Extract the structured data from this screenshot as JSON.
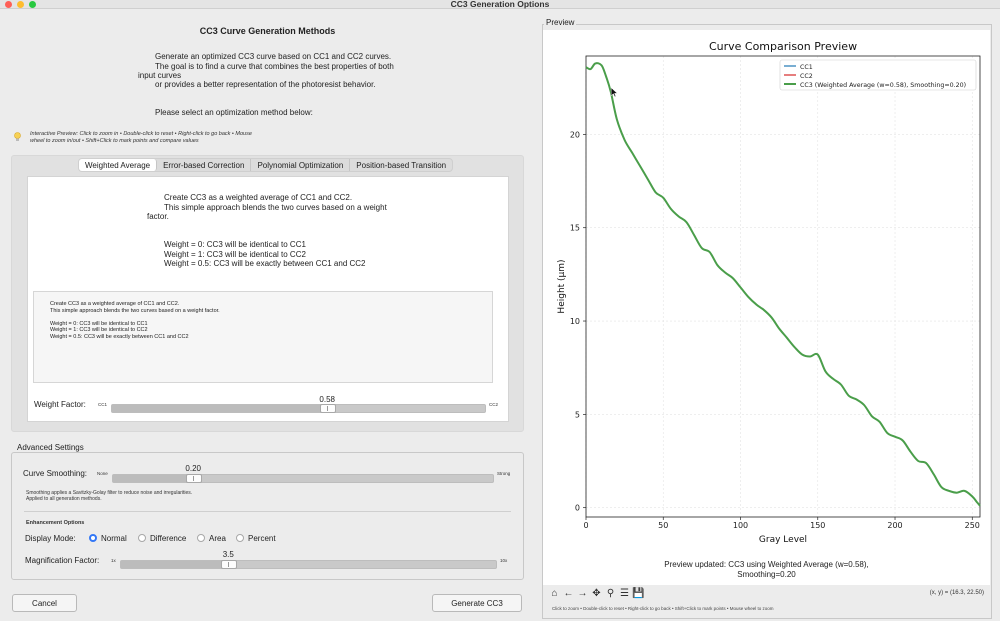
{
  "window": {
    "title": "CC3 Generation Options"
  },
  "heading": "CC3 Curve Generation Methods",
  "intro": {
    "lines": [
      "Generate an optimized CC3 curve based on CC1 and CC2 curves.",
      "The goal is to find a curve that combines the best properties of both",
      "input curves",
      "or provides a better representation of the photoresist behavior."
    ],
    "select_prompt": "Please select an optimization method below:"
  },
  "hint": {
    "line1": "Interactive Preview: Click to zoom in • Double-click to reset • Right-click to go back • Mouse",
    "line2": "wheel to zoom in/out • Shift+Click to mark points and compare values"
  },
  "tabs": [
    "Weighted Average",
    "Error-based Correction",
    "Polynomial Optimization",
    "Position-based Transition"
  ],
  "active_tab": 0,
  "method": {
    "desc": [
      "Create CC3 as a weighted average of CC1 and CC2.",
      "This simple approach blends the two curves based on a weight",
      "factor."
    ],
    "rules": [
      "Weight = 0: CC3 will be identical to CC1",
      "Weight = 1: CC3 will be identical to CC2",
      "Weight = 0.5: CC3 will be exactly between CC1 and CC2"
    ],
    "textbox": [
      "Create CC3 as a weighted average of CC1 and CC2.",
      "This simple approach blends the two curves based on a weight factor.",
      "",
      "Weight = 0: CC3 will be identical to CC1",
      "Weight = 1: CC3 will be identical to CC2",
      "Weight = 0.5: CC3 will be exactly between CC1 and CC2"
    ],
    "weight": {
      "label": "Weight Factor:",
      "min_label": "CC1",
      "max_label": "CC2",
      "value": 0.58,
      "value_text": "0.58"
    }
  },
  "advanced": {
    "title": "Advanced Settings",
    "smoothing": {
      "label": "Curve Smoothing:",
      "min_label": "None",
      "max_label": "Strong",
      "value": 0.2,
      "value_text": "0.20"
    },
    "smoothing_note": [
      "Smoothing applies a Savitzky-Golay filter to reduce noise and irregularities.",
      "Applied to all generation methods."
    ],
    "enhancement_title": "Enhancement Options",
    "display_mode": {
      "label": "Display Mode:",
      "options": [
        "Normal",
        "Difference",
        "Area",
        "Percent"
      ],
      "selected": 0
    },
    "magnification": {
      "label": "Magnification Factor:",
      "min_label": "1x",
      "max_label": "10x",
      "value": 3.5,
      "min": 1,
      "max": 10,
      "value_text": "3.5"
    }
  },
  "buttons": {
    "cancel": "Cancel",
    "generate": "Generate CC3"
  },
  "preview": {
    "group_title": "Preview",
    "status_line1": "Preview updated: CC3 using Weighted Average (w=0.58),",
    "status_line2": "Smoothing=0.20",
    "coords": "(x, y) = (16.3, 22.50)",
    "help": "Click to zoom • Double-click to reset • Right-click to go back • Shift+Click to mark points • Mouse wheel to zoom",
    "toolbar": [
      "home-icon",
      "back-arrow-icon",
      "forward-arrow-icon",
      "pan-icon",
      "zoom-icon",
      "configure-icon",
      "save-icon"
    ]
  },
  "chart_data": {
    "type": "line",
    "title": "Curve Comparison Preview",
    "xlabel": "Gray Level",
    "ylabel": "Height (µm)",
    "xlim": [
      0,
      255
    ],
    "ylim": [
      -0.5,
      24.2
    ],
    "xticks": [
      0,
      50,
      100,
      150,
      200,
      250
    ],
    "yticks": [
      0,
      5,
      10,
      15,
      20
    ],
    "grid": true,
    "legend_position": "top-right",
    "series": [
      {
        "name": "CC1",
        "color": "#1f77b4",
        "x": [],
        "y": []
      },
      {
        "name": "CC2",
        "color": "#d62728",
        "x": [],
        "y": []
      },
      {
        "name": "CC3 (Weighted Average (w=0.58), Smoothing=0.20)",
        "color": "#4a9e4a",
        "x": [
          0,
          3,
          6,
          10,
          13,
          16,
          20,
          25,
          30,
          35,
          40,
          45,
          50,
          55,
          60,
          65,
          70,
          75,
          80,
          85,
          90,
          95,
          100,
          105,
          110,
          115,
          120,
          125,
          130,
          135,
          140,
          145,
          150,
          155,
          160,
          165,
          170,
          175,
          180,
          185,
          190,
          195,
          200,
          205,
          210,
          215,
          220,
          225,
          230,
          235,
          240,
          245,
          250,
          253,
          255
        ],
        "y": [
          23.6,
          23.5,
          23.8,
          23.7,
          23.1,
          22.3,
          20.8,
          19.7,
          19.0,
          18.3,
          17.6,
          16.9,
          16.6,
          16.0,
          15.6,
          15.3,
          14.6,
          13.9,
          13.7,
          13.0,
          12.6,
          12.3,
          11.8,
          11.3,
          10.9,
          10.6,
          10.2,
          9.6,
          9.1,
          8.6,
          8.2,
          8.1,
          8.2,
          7.3,
          6.9,
          6.6,
          6.0,
          5.8,
          5.5,
          4.9,
          4.6,
          4.0,
          3.8,
          3.6,
          3.0,
          2.5,
          2.4,
          1.8,
          1.1,
          0.9,
          0.8,
          0.9,
          0.6,
          0.3,
          0.1
        ]
      }
    ]
  }
}
